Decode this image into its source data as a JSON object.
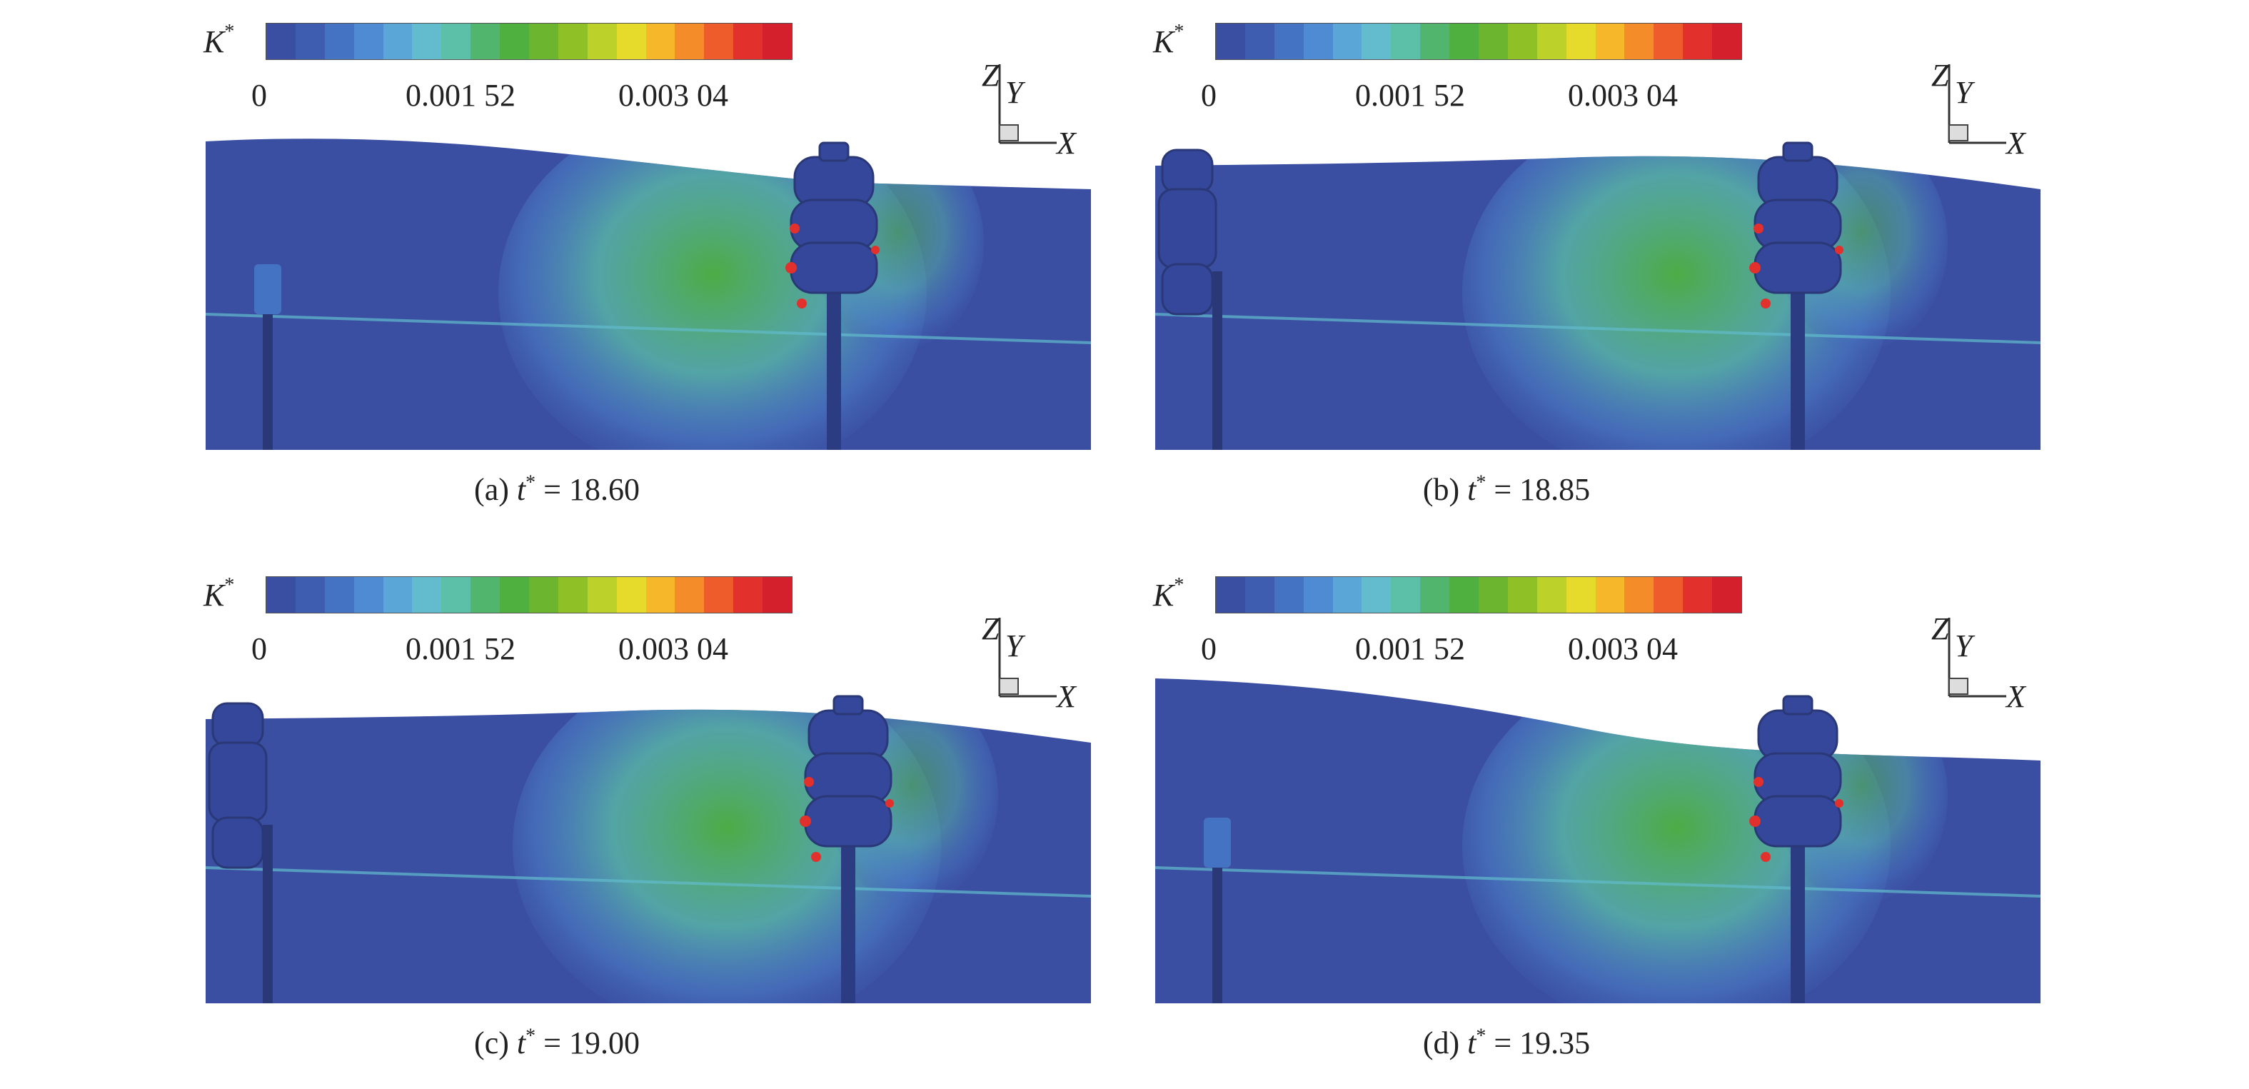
{
  "colorbar": {
    "label_main": "K",
    "label_sup": "*",
    "ticks": [
      "0",
      "0.001 52",
      "0.003 04"
    ],
    "colors": [
      "#3b4fa2",
      "#3e5cb0",
      "#4573c4",
      "#4f8bd2",
      "#5aa6d6",
      "#62bccd",
      "#5bc0a7",
      "#52b56e",
      "#4fb040",
      "#6cb52f",
      "#8fc126",
      "#bcd22b",
      "#e6da2b",
      "#f7b72a",
      "#f48c2a",
      "#ef5c2b",
      "#e2302d",
      "#d41f2c"
    ]
  },
  "axes": {
    "z": "Z",
    "y": "Y",
    "x": "X"
  },
  "panels": [
    {
      "id": "a",
      "caption_prefix": "(a)",
      "var": "t",
      "var_sup": "*",
      "eq": "= 18.60"
    },
    {
      "id": "b",
      "caption_prefix": "(b)",
      "var": "t",
      "var_sup": "*",
      "eq": "= 18.85"
    },
    {
      "id": "c",
      "caption_prefix": "(c)",
      "var": "t",
      "var_sup": "*",
      "eq": "= 19.00"
    },
    {
      "id": "d",
      "caption_prefix": "(d)",
      "var": "t",
      "var_sup": "*",
      "eq": "= 19.35"
    }
  ]
}
